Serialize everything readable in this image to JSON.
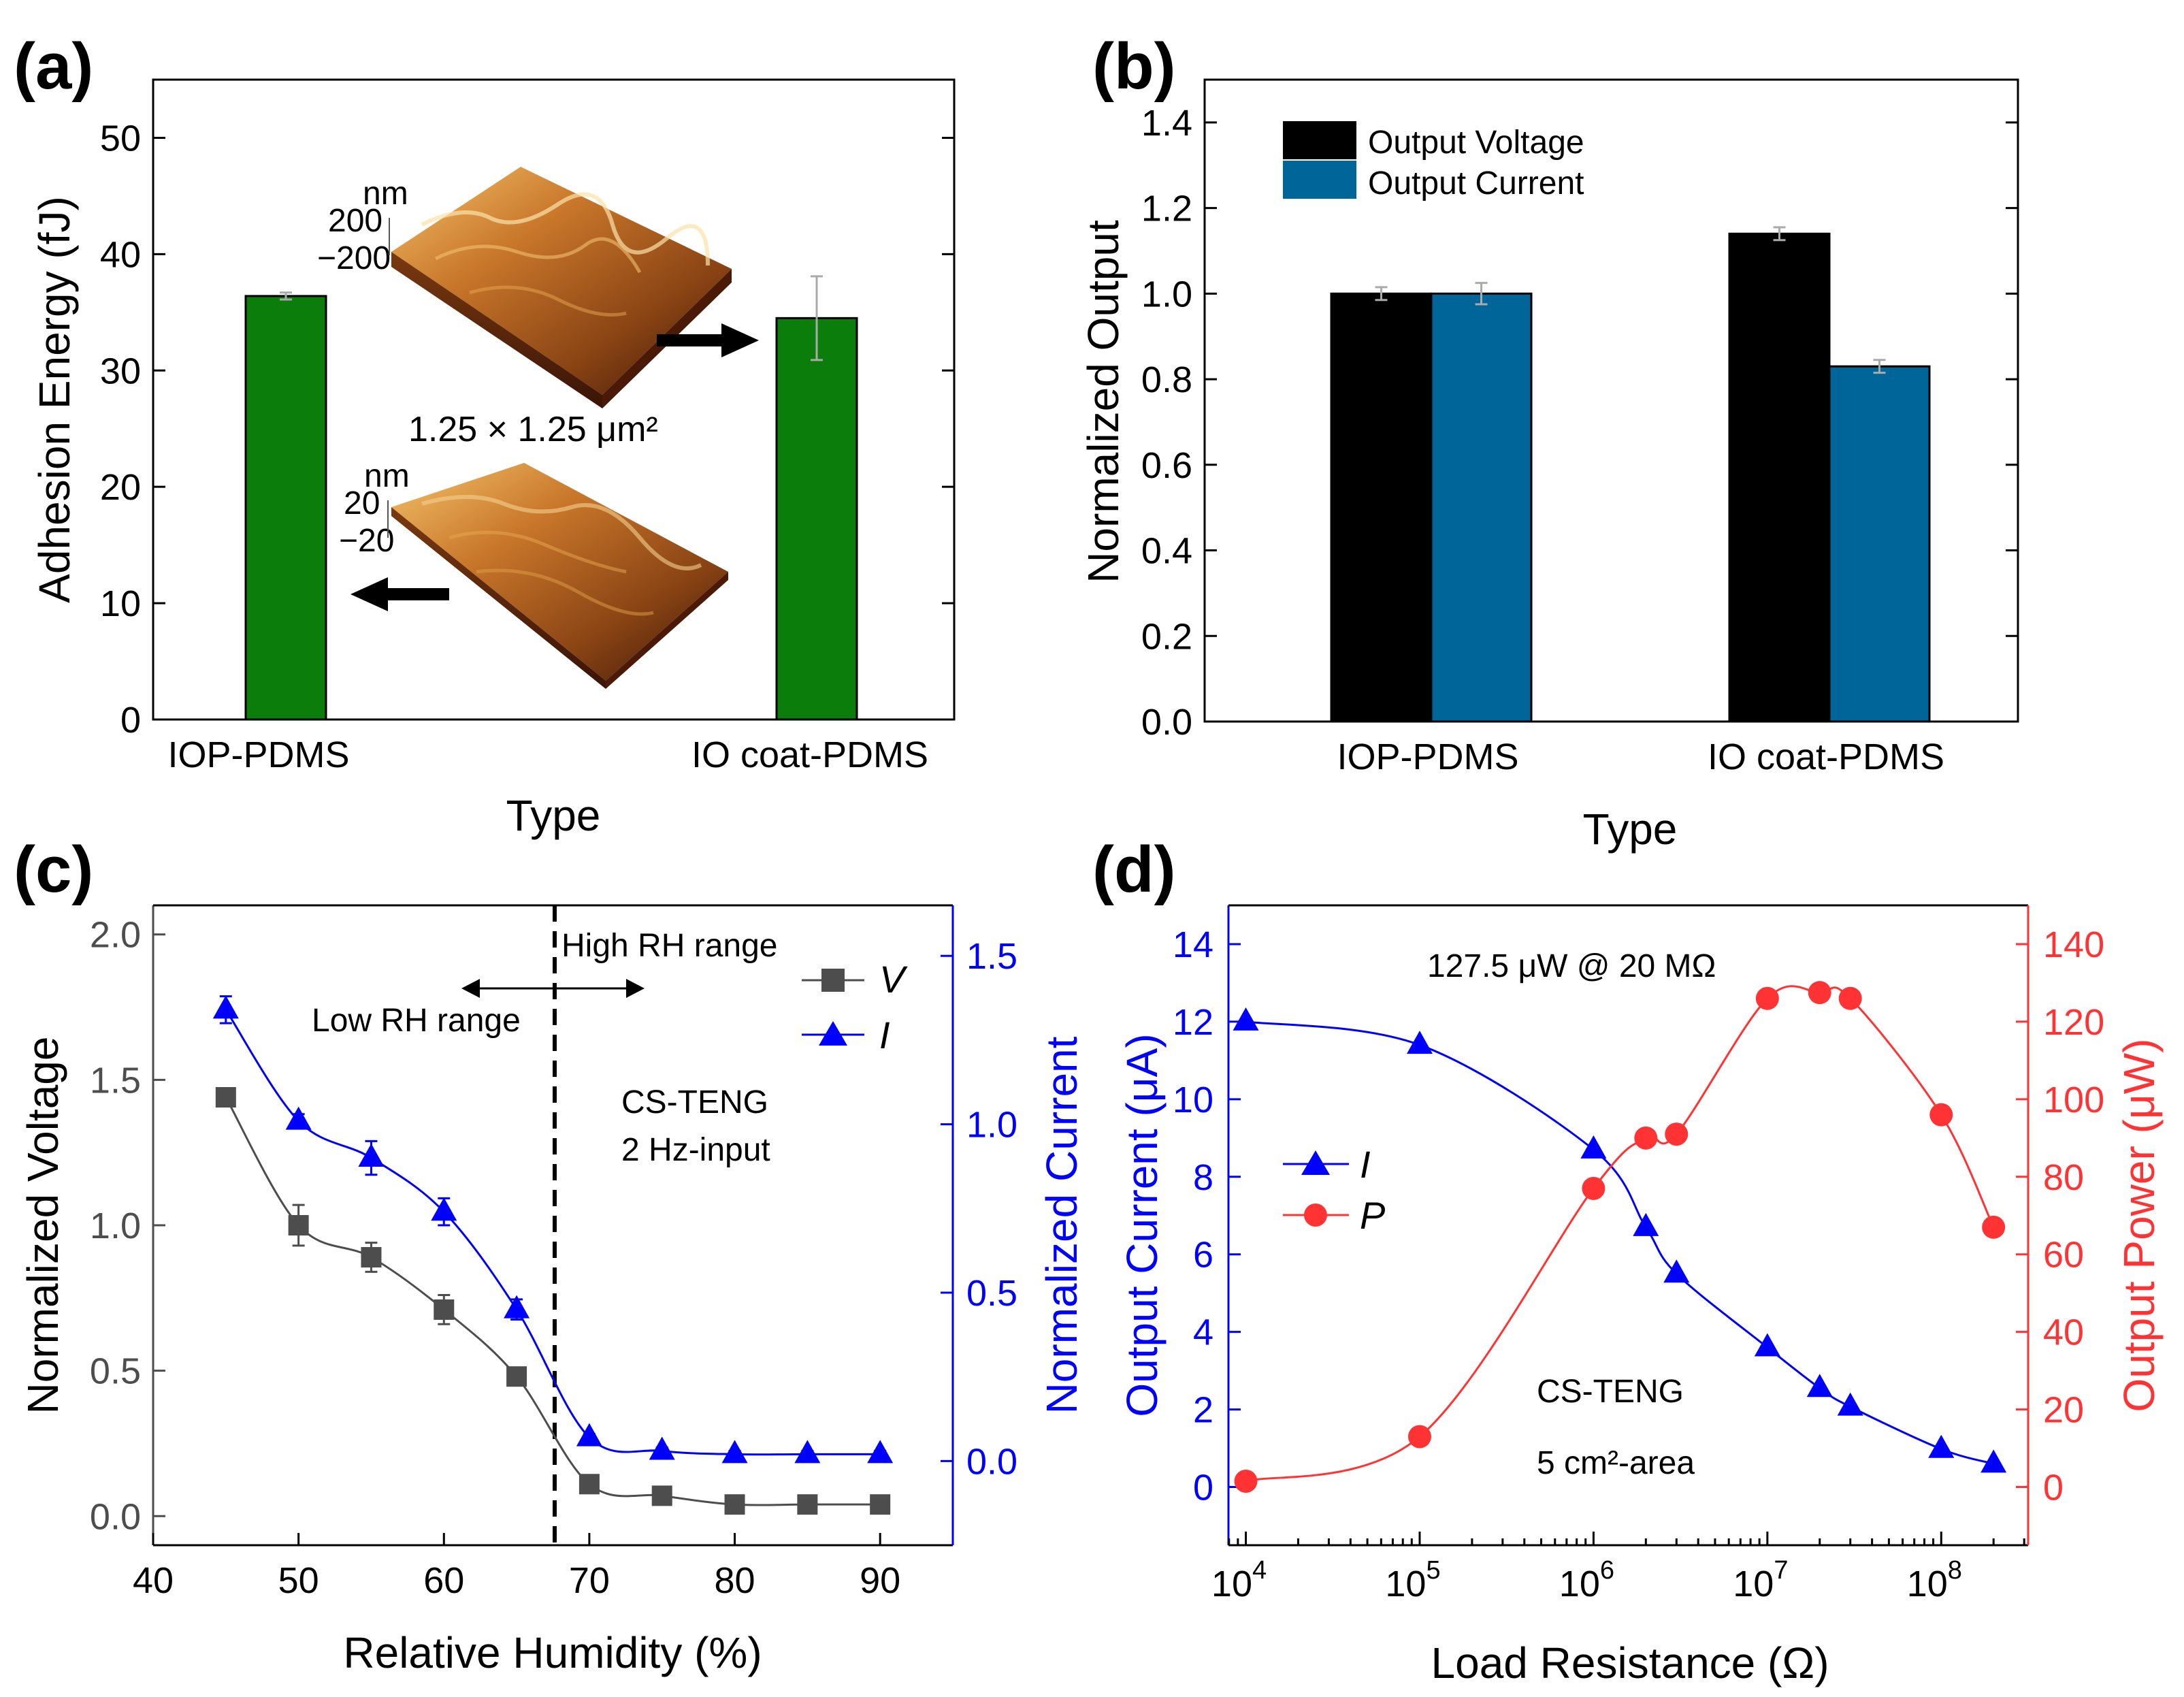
{
  "panels": {
    "a": {
      "label": "(a)"
    },
    "b": {
      "label": "(b)"
    },
    "c": {
      "label": "(c)"
    },
    "d": {
      "label": "(d)"
    }
  },
  "colors": {
    "green_bar": "#0a7d0a",
    "black_bar": "#000000",
    "blue_bar": "#006699",
    "gray_series": "#4d4d4d",
    "blue_series": "#0000ff",
    "red_series": "#ff3333",
    "error_bar": "#aaaaaa"
  },
  "chart_data": [
    {
      "id": "a",
      "type": "bar",
      "title": "",
      "xlabel": "Type",
      "ylabel": "Adhesion Energy (fJ)",
      "ylim": [
        0,
        55
      ],
      "yticks": [
        0,
        10,
        20,
        30,
        40,
        50
      ],
      "categories": [
        "IOP-PDMS",
        "IO coat-PDMS"
      ],
      "values": [
        36.4,
        34.5
      ],
      "errors": [
        0.3,
        3.6
      ],
      "annotations": {
        "scan_area": "1.25 × 1.25 μm²",
        "upper_inset_unit": "nm",
        "upper_inset_ticks": [
          "200",
          "−200"
        ],
        "lower_inset_unit": "nm",
        "lower_inset_ticks": [
          "20",
          "−20"
        ]
      }
    },
    {
      "id": "b",
      "type": "bar",
      "title": "",
      "xlabel": "Type",
      "ylabel": "Normalized Output",
      "ylim": [
        0,
        1.5
      ],
      "yticks": [
        0.0,
        0.2,
        0.4,
        0.6,
        0.8,
        1.0,
        1.2,
        1.4
      ],
      "categories": [
        "IOP-PDMS",
        "IO coat-PDMS"
      ],
      "series": [
        {
          "name": "Output Voltage",
          "values": [
            1.0,
            1.14
          ],
          "errors": [
            0.015,
            0.015
          ]
        },
        {
          "name": "Output Current",
          "values": [
            1.0,
            0.83
          ],
          "errors": [
            0.025,
            0.015
          ]
        }
      ],
      "legend": "top-left"
    },
    {
      "id": "c",
      "type": "scatter",
      "title": "",
      "xlabel": "Relative Humidity (%)",
      "ylabel": "Normalized Voltage",
      "ylabel_right": "Normalized Current",
      "xlim": [
        40,
        95
      ],
      "xticks": [
        40,
        50,
        60,
        70,
        80,
        90
      ],
      "ylim": [
        -0.1,
        2.1
      ],
      "yticks": [
        0.0,
        0.5,
        1.0,
        1.5,
        2.0
      ],
      "ylim_right": [
        -0.25,
        1.65
      ],
      "yticks_right": [
        0.0,
        0.5,
        1.0,
        1.5
      ],
      "x": [
        45,
        50,
        55,
        60,
        65,
        70,
        75,
        80,
        85,
        90
      ],
      "series": [
        {
          "name": "V",
          "axis": "left",
          "values": [
            1.44,
            1.0,
            0.89,
            0.71,
            0.48,
            0.11,
            0.07,
            0.04,
            0.04,
            0.04
          ],
          "errors": [
            0.02,
            0.07,
            0.05,
            0.05,
            0.02,
            0.02,
            0.01,
            0.01,
            0.01,
            0.01
          ]
        },
        {
          "name": "I",
          "axis": "right",
          "values": [
            1.34,
            1.01,
            0.9,
            0.74,
            0.45,
            0.07,
            0.03,
            0.02,
            0.02,
            0.02
          ],
          "errors": [
            0.04,
            0.02,
            0.05,
            0.04,
            0.03,
            0.01,
            0.01,
            0.01,
            0.01,
            0.01
          ]
        }
      ],
      "vline_x": 67.5,
      "annotations": {
        "high_rh": "High RH range",
        "low_rh": "Low RH range",
        "device": "CS-TENG",
        "input": "2 Hz-input"
      }
    },
    {
      "id": "d",
      "type": "scatter",
      "title": "",
      "xlabel": "Load Resistance (Ω)",
      "ylabel": "Output Current (μA)",
      "ylabel_right": "Output Power (μW)",
      "xscale": "log",
      "xlim_log10": [
        3.9,
        8.5
      ],
      "xticks_log10": [
        4,
        5,
        6,
        7,
        8
      ],
      "ylim": [
        -1.5,
        15
      ],
      "yticks": [
        0,
        2,
        4,
        6,
        8,
        10,
        12,
        14
      ],
      "ylim_right": [
        -15,
        150
      ],
      "yticks_right": [
        0,
        20,
        40,
        60,
        80,
        100,
        120,
        140
      ],
      "x": [
        10000,
        100000,
        1000000,
        2000000,
        3000000,
        10000000,
        20000000,
        30000000,
        100000000,
        200000000
      ],
      "series": [
        {
          "name": "I",
          "axis": "left",
          "values": [
            12.0,
            11.4,
            8.7,
            6.7,
            5.5,
            3.6,
            2.55,
            2.07,
            0.98,
            0.6
          ]
        },
        {
          "name": "P",
          "axis": "right",
          "values": [
            1.5,
            13,
            77,
            90,
            91,
            126,
            127.5,
            126,
            96,
            67
          ]
        }
      ],
      "annotations": {
        "peak": "127.5 μW @ 20 MΩ",
        "device": "CS-TENG",
        "area": "5 cm²-area"
      }
    }
  ]
}
